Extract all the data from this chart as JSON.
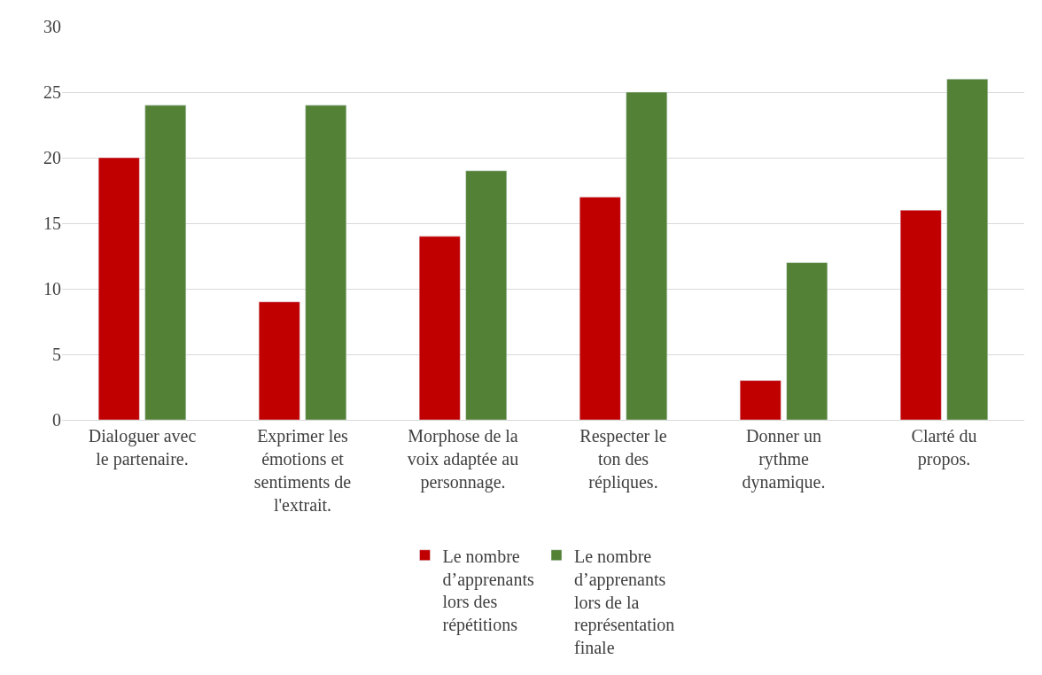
{
  "chart_data": {
    "type": "bar",
    "categories": [
      "Dialoguer avec le partenaire.",
      "Exprimer les émotions et sentiments de l'extrait.",
      "Morphose de la voix adaptée au personnage.",
      "Respecter le ton des répliques.",
      "Donner un rythme dynamique.",
      "Clarté du propos."
    ],
    "series": [
      {
        "name": "Le nombre d’apprenants lors des répétitions",
        "color": "#c00000",
        "values": [
          20,
          9,
          14,
          17,
          3,
          16
        ]
      },
      {
        "name": "Le nombre d’apprenants lors de la représentation finale",
        "color": "#538135",
        "values": [
          24,
          24,
          19,
          25,
          12,
          26
        ]
      }
    ],
    "ylim": [
      0,
      30
    ],
    "yticks": [
      0,
      5,
      10,
      15,
      20,
      25,
      30
    ],
    "grid": "y",
    "legend": "bottom"
  }
}
